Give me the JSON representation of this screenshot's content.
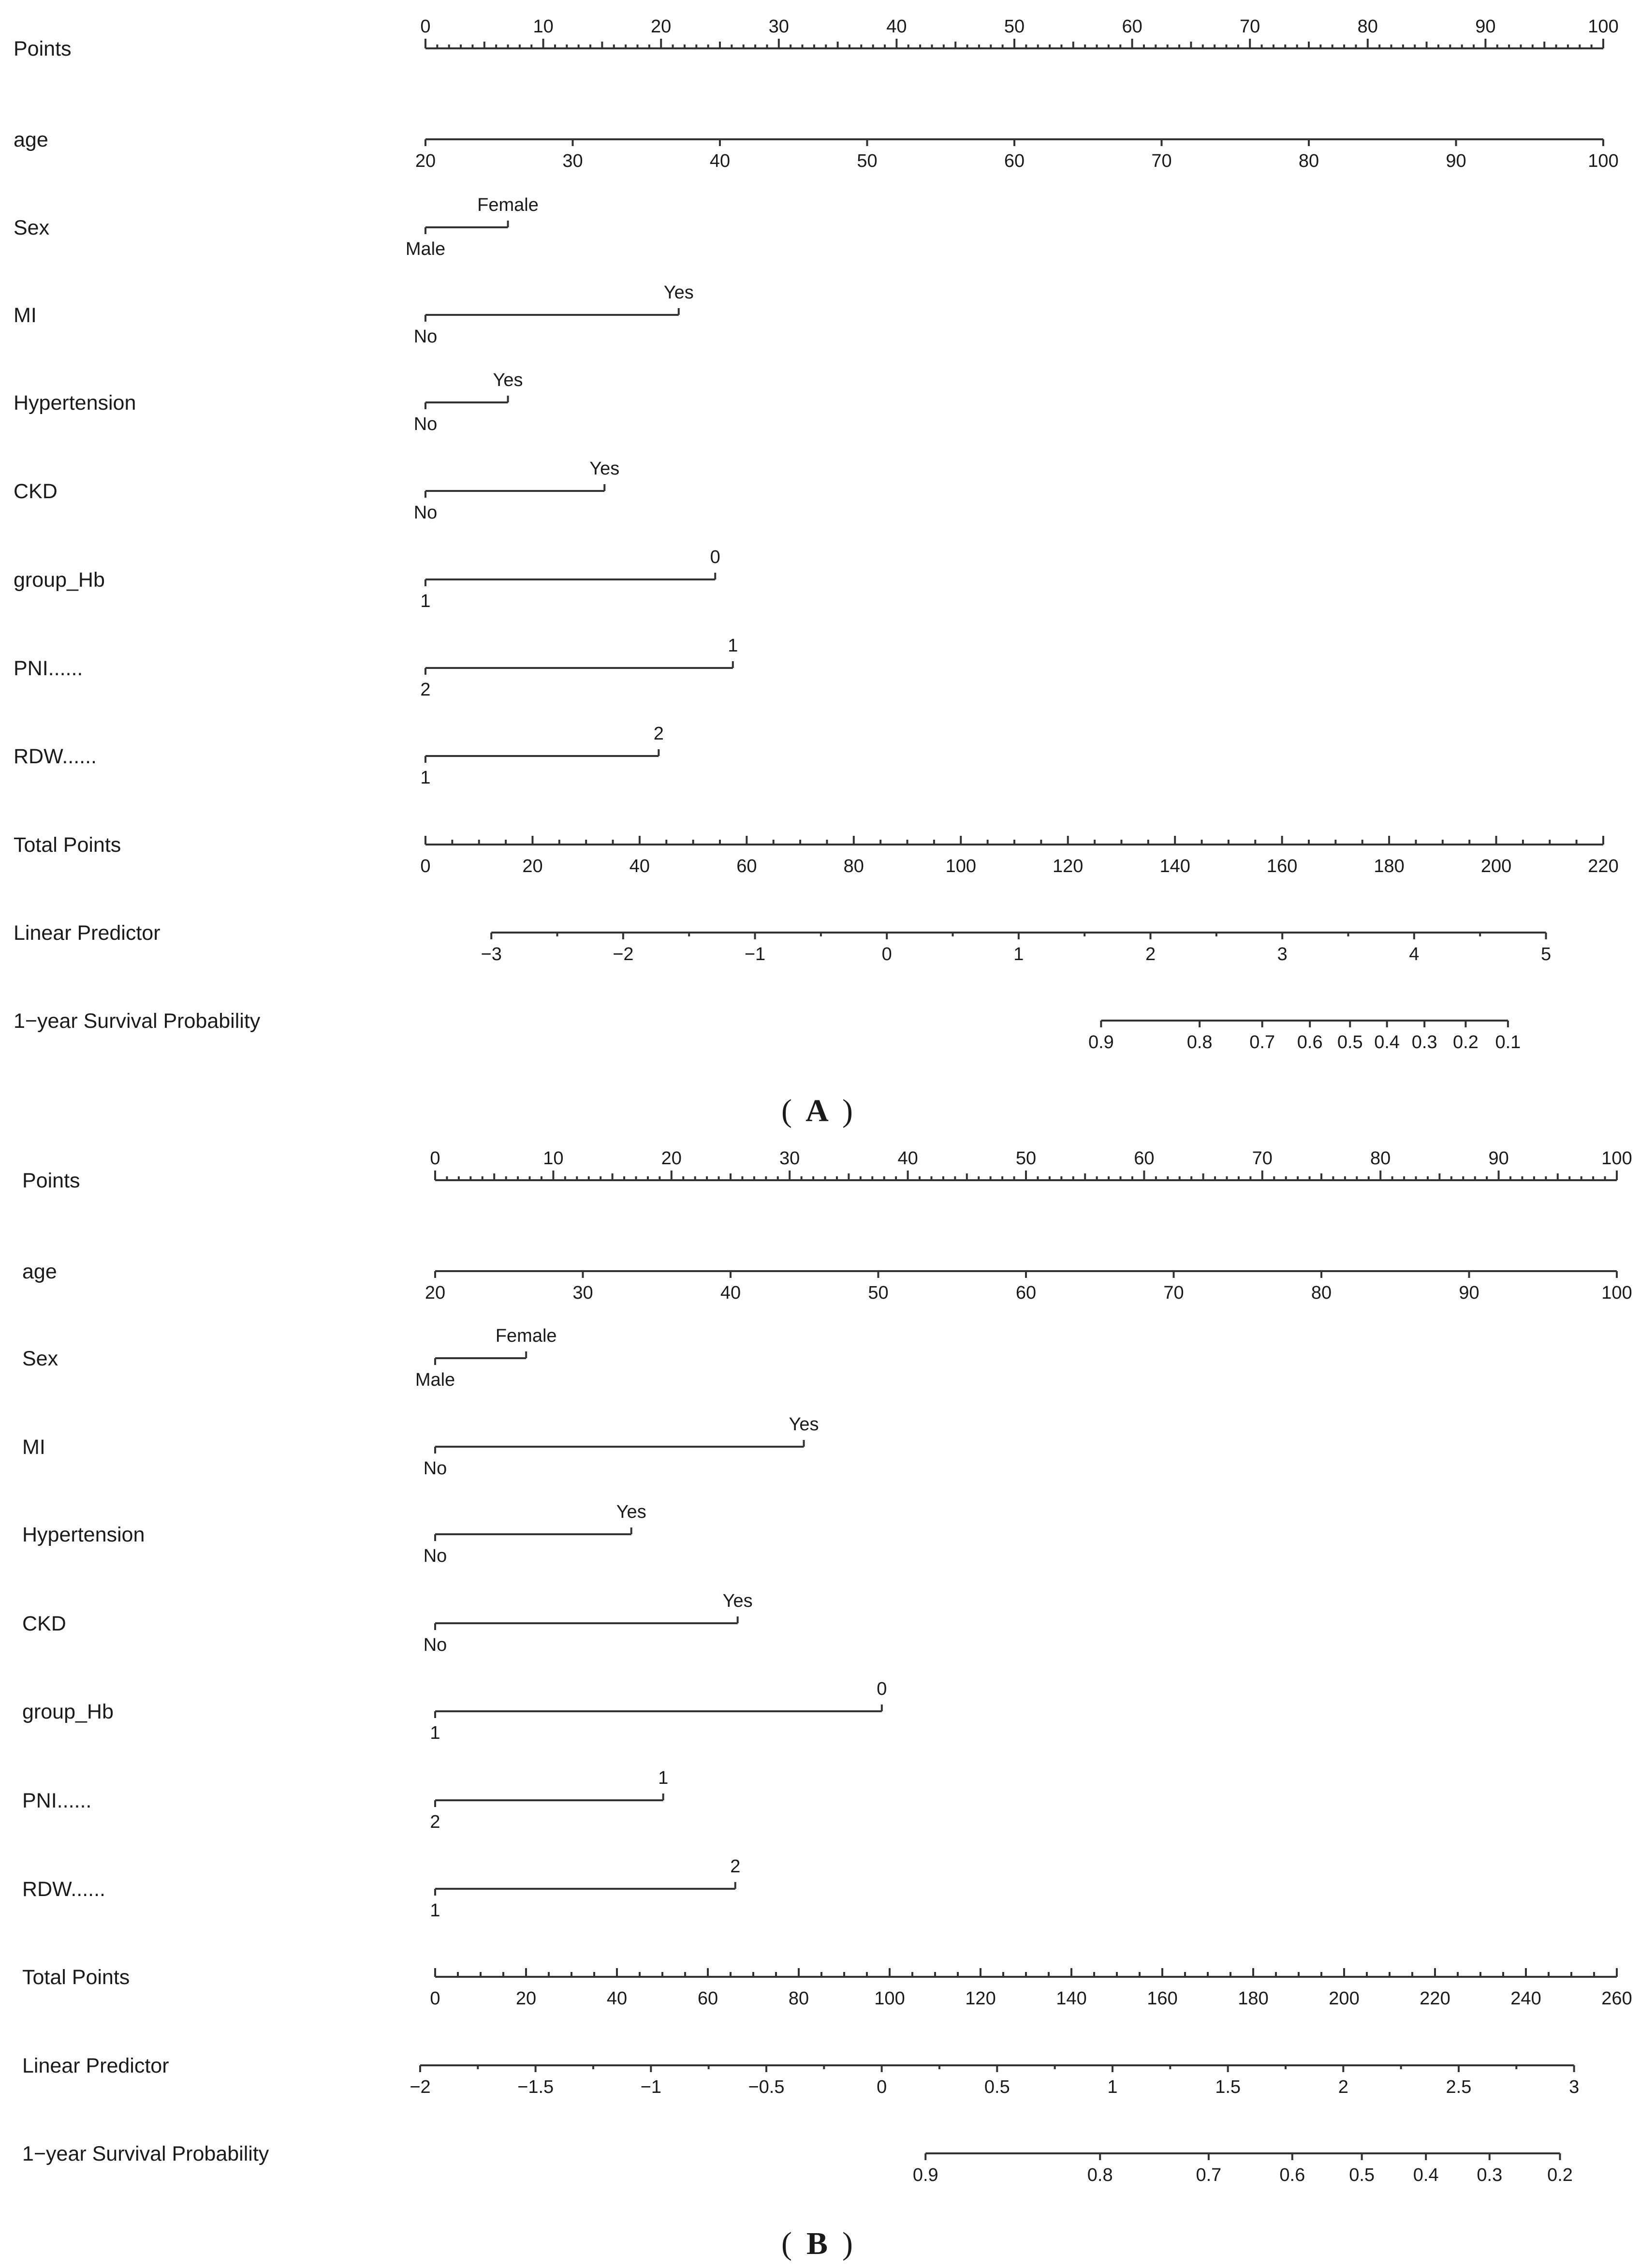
{
  "chart_data": [
    {
      "type": "nomogram",
      "panel": "A",
      "rows": [
        {
          "label": "Points",
          "kind": "points",
          "range": [
            0,
            100
          ],
          "ticks": [
            0,
            10,
            20,
            30,
            40,
            50,
            60,
            70,
            80,
            90,
            100
          ],
          "minor_step": 1
        },
        {
          "label": "age",
          "kind": "numeric",
          "range": [
            20,
            100
          ],
          "ticks": [
            20,
            30,
            40,
            50,
            60,
            70,
            80,
            90,
            100
          ],
          "points_range": [
            0,
            100
          ]
        },
        {
          "label": "Sex",
          "kind": "categorical",
          "levels": [
            {
              "name": "Male",
              "points": 0
            },
            {
              "name": "Female",
              "points": 7
            }
          ]
        },
        {
          "label": "MI",
          "kind": "categorical",
          "levels": [
            {
              "name": "No",
              "points": 0
            },
            {
              "name": "Yes",
              "points": 21.5
            }
          ]
        },
        {
          "label": "Hypertension",
          "kind": "categorical",
          "levels": [
            {
              "name": "No",
              "points": 0
            },
            {
              "name": "Yes",
              "points": 7
            }
          ]
        },
        {
          "label": "CKD",
          "kind": "categorical",
          "levels": [
            {
              "name": "No",
              "points": 0
            },
            {
              "name": "Yes",
              "points": 15.2
            }
          ]
        },
        {
          "label": "group_Hb",
          "kind": "categorical",
          "levels": [
            {
              "name": "1",
              "points": 0
            },
            {
              "name": "0",
              "points": 24.6
            }
          ]
        },
        {
          "label": "PNI......",
          "kind": "categorical",
          "levels": [
            {
              "name": "2",
              "points": 0
            },
            {
              "name": "1",
              "points": 26.1
            }
          ]
        },
        {
          "label": "RDW......",
          "kind": "categorical",
          "levels": [
            {
              "name": "1",
              "points": 0
            },
            {
              "name": "2",
              "points": 19.8
            }
          ]
        },
        {
          "label": "Total Points",
          "kind": "total",
          "range": [
            0,
            220
          ],
          "ticks": [
            0,
            20,
            40,
            60,
            80,
            100,
            120,
            140,
            160,
            180,
            200,
            220
          ],
          "minor_step": 5
        },
        {
          "label": "Linear Predictor",
          "kind": "lp",
          "range": [
            -3,
            5
          ],
          "ticks": [
            -3,
            -2,
            -1,
            0,
            1,
            2,
            3,
            4,
            5
          ],
          "tick_labels": [
            "−3",
            "−2",
            "−1",
            "0",
            "1",
            "2",
            "3",
            "4",
            "5"
          ],
          "total_points_at_ends": [
            12.3,
            209.3
          ],
          "minor_step": 0.5
        },
        {
          "label": "1−year Survival Probability",
          "kind": "prob",
          "ticks": [
            {
              "label": "0.9",
              "total_points": 126.2
            },
            {
              "label": "0.8",
              "total_points": 144.6
            },
            {
              "label": "0.7",
              "total_points": 156.3
            },
            {
              "label": "0.6",
              "total_points": 165.2
            },
            {
              "label": "0.5",
              "total_points": 172.7
            },
            {
              "label": "0.4",
              "total_points": 179.6
            },
            {
              "label": "0.3",
              "total_points": 186.6
            },
            {
              "label": "0.2",
              "total_points": 194.3
            },
            {
              "label": "0.1",
              "total_points": 202.2
            }
          ]
        }
      ]
    },
    {
      "type": "nomogram",
      "panel": "B",
      "rows": [
        {
          "label": "Points",
          "kind": "points",
          "range": [
            0,
            100
          ],
          "ticks": [
            0,
            10,
            20,
            30,
            40,
            50,
            60,
            70,
            80,
            90,
            100
          ],
          "minor_step": 1
        },
        {
          "label": "age",
          "kind": "numeric",
          "range": [
            20,
            100
          ],
          "ticks": [
            20,
            30,
            40,
            50,
            60,
            70,
            80,
            90,
            100
          ],
          "points_range": [
            0,
            100
          ]
        },
        {
          "label": "Sex",
          "kind": "categorical",
          "levels": [
            {
              "name": "Male",
              "points": 0
            },
            {
              "name": "Female",
              "points": 7.7
            }
          ]
        },
        {
          "label": "MI",
          "kind": "categorical",
          "levels": [
            {
              "name": "No",
              "points": 0
            },
            {
              "name": "Yes",
              "points": 31.2
            }
          ]
        },
        {
          "label": "Hypertension",
          "kind": "categorical",
          "levels": [
            {
              "name": "No",
              "points": 0
            },
            {
              "name": "Yes",
              "points": 16.6
            }
          ]
        },
        {
          "label": "CKD",
          "kind": "categorical",
          "levels": [
            {
              "name": "No",
              "points": 0
            },
            {
              "name": "Yes",
              "points": 25.6
            }
          ]
        },
        {
          "label": "group_Hb",
          "kind": "categorical",
          "levels": [
            {
              "name": "1",
              "points": 0
            },
            {
              "name": "0",
              "points": 37.8
            }
          ]
        },
        {
          "label": "PNI......",
          "kind": "categorical",
          "levels": [
            {
              "name": "2",
              "points": 0
            },
            {
              "name": "1",
              "points": 19.3
            }
          ]
        },
        {
          "label": "RDW......",
          "kind": "categorical",
          "levels": [
            {
              "name": "1",
              "points": 0
            },
            {
              "name": "2",
              "points": 25.4
            }
          ]
        },
        {
          "label": "Total Points",
          "kind": "total",
          "range": [
            0,
            260
          ],
          "ticks": [
            0,
            20,
            40,
            60,
            80,
            100,
            120,
            140,
            160,
            180,
            200,
            220,
            240,
            260
          ],
          "minor_step": 5
        },
        {
          "label": "Linear Predictor",
          "kind": "lp",
          "range": [
            -2,
            3
          ],
          "ticks": [
            -2,
            -1.5,
            -1,
            -0.5,
            0,
            0.5,
            1,
            1.5,
            2,
            2.5,
            3
          ],
          "tick_labels": [
            "−2",
            "−1.5",
            "−1",
            "−0.5",
            "0",
            "0.5",
            "1",
            "1.5",
            "2",
            "2.5",
            "3"
          ],
          "total_points_at_ends": [
            -3.3,
            250.6
          ],
          "minor_step": 0.25
        },
        {
          "label": "1−year Survival Probability",
          "kind": "prob",
          "ticks": [
            {
              "label": "0.9",
              "total_points": 107.9
            },
            {
              "label": "0.8",
              "total_points": 146.3
            },
            {
              "label": "0.7",
              "total_points": 170.2
            },
            {
              "label": "0.6",
              "total_points": 188.6
            },
            {
              "label": "0.5",
              "total_points": 203.9
            },
            {
              "label": "0.4",
              "total_points": 218.0
            },
            {
              "label": "0.3",
              "total_points": 232.0
            },
            {
              "label": "0.2",
              "total_points": 247.5
            }
          ]
        }
      ]
    }
  ],
  "captions": {
    "a": {
      "open": "(",
      "letter": "A",
      "close": ")"
    },
    "b": {
      "open": "(",
      "letter": "B",
      "close": ")"
    }
  }
}
